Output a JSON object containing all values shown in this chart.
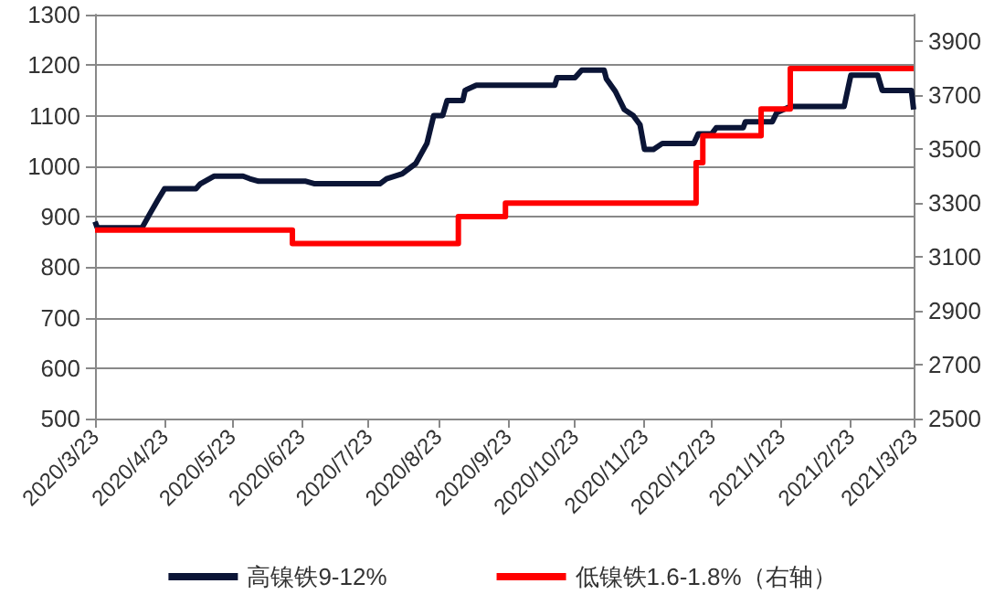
{
  "chart_data": {
    "type": "line",
    "xticks": [
      {
        "value": "2020-03-23",
        "label": "2020/3/23"
      },
      {
        "value": "2020-04-23",
        "label": "2020/4/23"
      },
      {
        "value": "2020-05-23",
        "label": "2020/5/23"
      },
      {
        "value": "2020-06-23",
        "label": "2020/6/23"
      },
      {
        "value": "2020-07-23",
        "label": "2020/7/23"
      },
      {
        "value": "2020-08-23",
        "label": "2020/8/23"
      },
      {
        "value": "2020-09-23",
        "label": "2020/9/23"
      },
      {
        "value": "2020-10-23",
        "label": "2020/10/23"
      },
      {
        "value": "2020-11-23",
        "label": "2020/11/23"
      },
      {
        "value": "2020-12-23",
        "label": "2020/12/23"
      },
      {
        "value": "2021-01-23",
        "label": "2021/1/23"
      },
      {
        "value": "2021-02-23",
        "label": "2021/2/23"
      },
      {
        "value": "2021-03-23",
        "label": "2021/3/23"
      }
    ],
    "xlim": [
      "2020-03-23",
      "2021-03-23"
    ],
    "ylim": [
      500,
      1300
    ],
    "yticks": [
      500,
      600,
      700,
      800,
      900,
      1000,
      1100,
      1200,
      1300
    ],
    "y2lim": [
      2500,
      4000
    ],
    "y2ticks": [
      2500,
      2700,
      2900,
      3100,
      3300,
      3500,
      3700,
      3900
    ],
    "grid": "y",
    "legend": "bottom",
    "marker": "none",
    "series": [
      {
        "name": "高镍铁9-12%",
        "color": "#0b1536",
        "x": [
          "2020-03-23",
          "2020-03-24",
          "2020-04-13",
          "2020-04-16",
          "2020-04-20",
          "2020-04-23",
          "2020-05-07",
          "2020-05-09",
          "2020-05-15",
          "2020-05-28",
          "2020-05-31",
          "2020-06-04",
          "2020-06-25",
          "2020-06-29",
          "2020-07-28",
          "2020-07-31",
          "2020-08-07",
          "2020-08-10",
          "2020-08-13",
          "2020-08-18",
          "2020-08-21",
          "2020-08-25",
          "2020-08-27",
          "2020-09-03",
          "2020-09-04",
          "2020-09-09",
          "2020-10-14",
          "2020-10-15",
          "2020-10-23",
          "2020-10-26",
          "2020-11-05",
          "2020-11-06",
          "2020-11-10",
          "2020-11-14",
          "2020-11-18",
          "2020-11-21",
          "2020-11-23",
          "2020-11-27",
          "2020-12-01",
          "2020-12-15",
          "2020-12-17",
          "2020-12-23",
          "2020-12-25",
          "2021-01-06",
          "2021-01-07",
          "2021-01-19",
          "2021-01-21",
          "2021-01-27",
          "2021-02-20",
          "2021-02-23",
          "2021-03-07",
          "2021-03-09",
          "2021-03-22",
          "2021-03-23"
        ],
        "values": [
          890,
          878,
          878,
          902,
          933,
          955,
          955,
          965,
          980,
          980,
          975,
          970,
          970,
          965,
          965,
          975,
          985,
          995,
          1005,
          1045,
          1100,
          1100,
          1130,
          1130,
          1150,
          1160,
          1160,
          1175,
          1175,
          1190,
          1190,
          1173,
          1148,
          1112,
          1100,
          1082,
          1033,
          1033,
          1045,
          1045,
          1064,
          1064,
          1076,
          1076,
          1088,
          1088,
          1106,
          1118,
          1118,
          1180,
          1180,
          1150,
          1150,
          1112
        ]
      },
      {
        "name": "低镍铁1.6-1.8%（右轴）",
        "type": "step",
        "axis": "y2",
        "color": "#ff0000",
        "x": [
          "2020-03-23",
          "2020-06-19",
          "2020-09-01",
          "2020-09-22",
          "2020-12-16",
          "2020-12-19",
          "2021-01-14",
          "2021-01-27",
          "2021-03-23"
        ],
        "values": [
          3200,
          3150,
          3250,
          3300,
          3450,
          3550,
          3650,
          3800,
          3800
        ]
      }
    ]
  }
}
